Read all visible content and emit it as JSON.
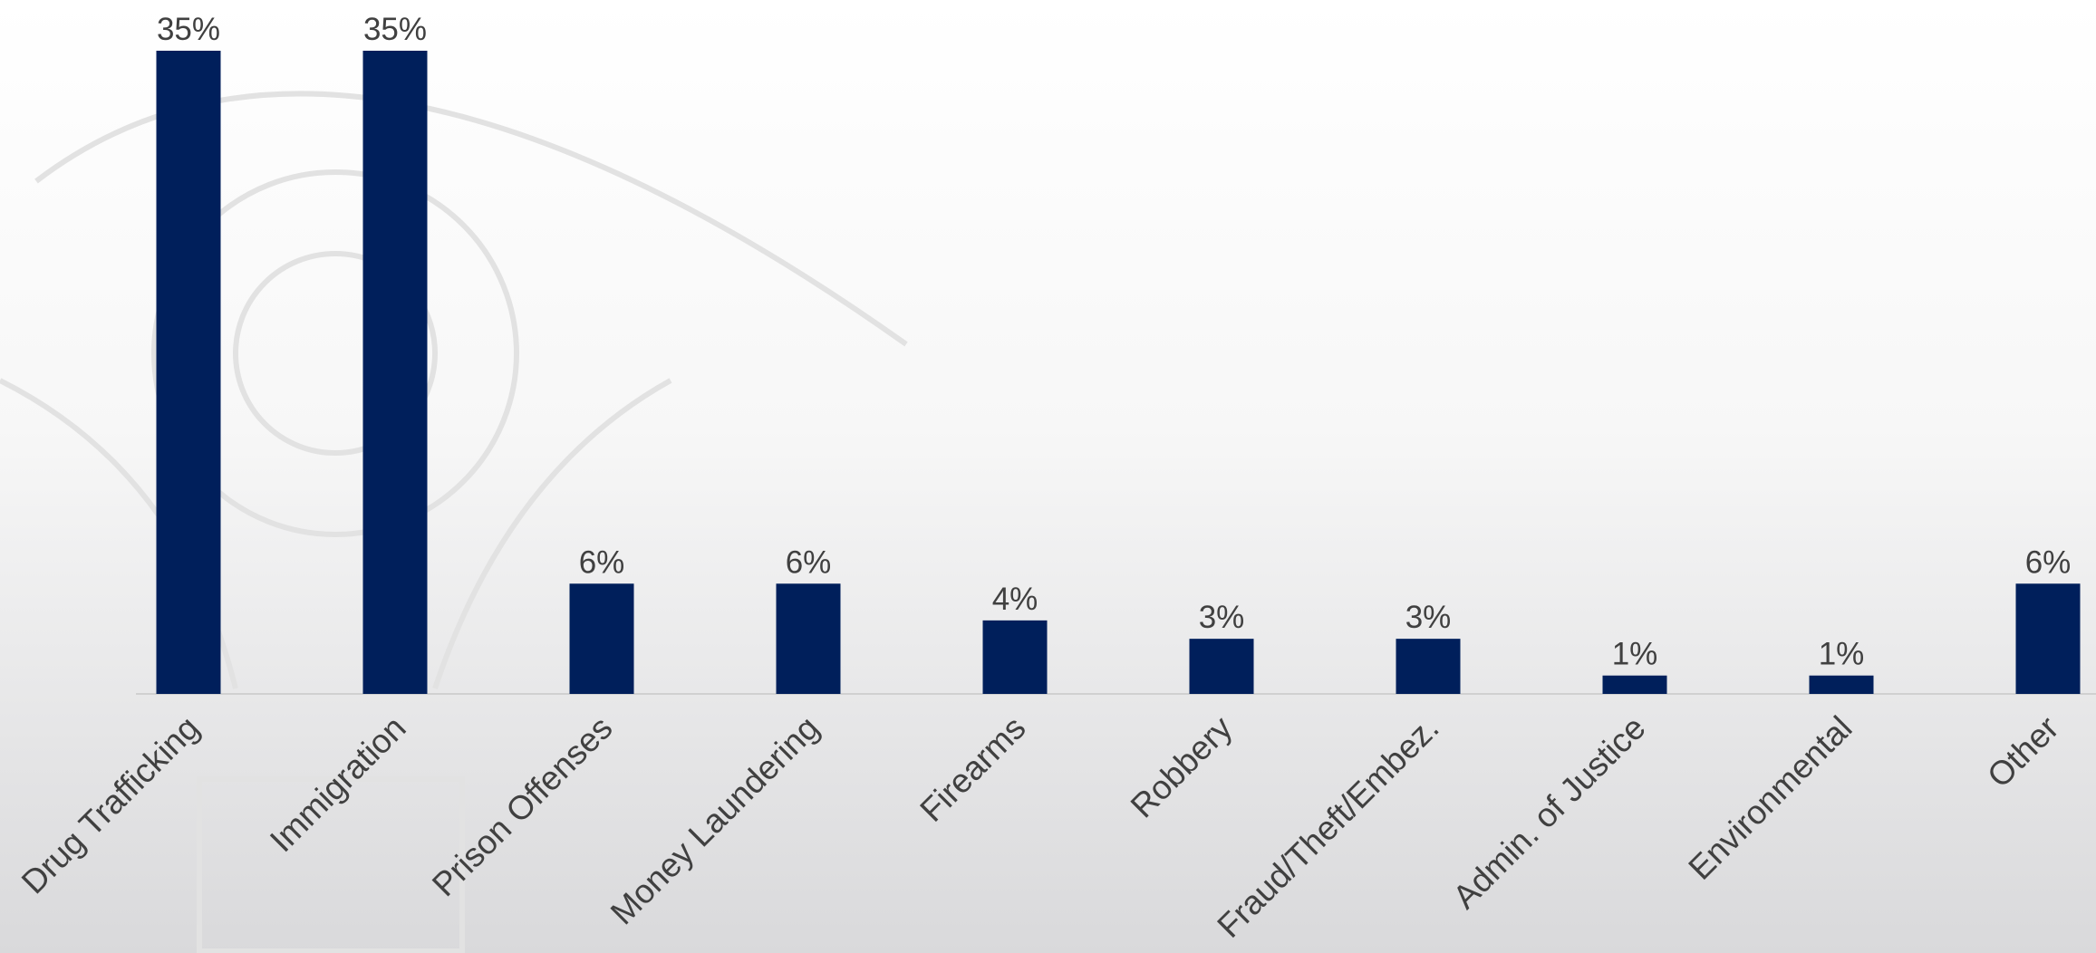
{
  "chart_data": {
    "type": "bar",
    "categories": [
      "Drug Trafficking",
      "Immigration",
      "Prison Offenses",
      "Money Laundering",
      "Firearms",
      "Robbery",
      "Fraud/Theft/Embez.",
      "Admin. of Justice",
      "Environmental",
      "Other"
    ],
    "values": [
      35,
      35,
      6,
      6,
      4,
      3,
      3,
      1,
      1,
      6
    ],
    "value_labels": [
      "35%",
      "35%",
      "6%",
      "6%",
      "4%",
      "3%",
      "3%",
      "1%",
      "1%",
      "6%"
    ],
    "color": "#001f5b"
  }
}
